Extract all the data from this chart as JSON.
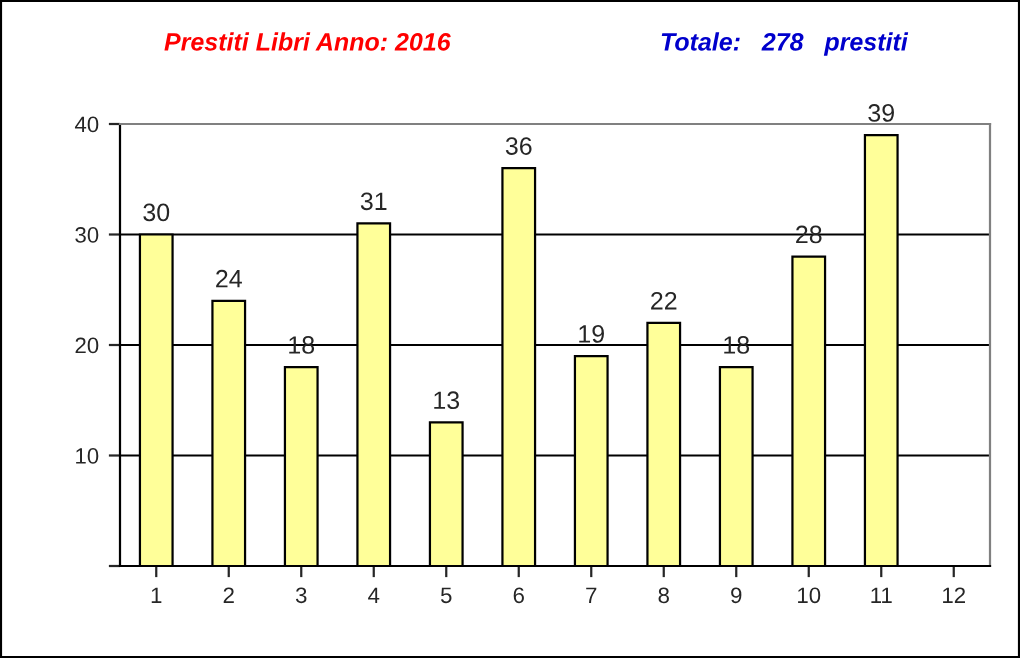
{
  "chart_data": {
    "type": "bar",
    "title": "Prestiti Libri Anno: 2016",
    "annotations": [
      "Totale:   278   prestiti"
    ],
    "categories": [
      "1",
      "2",
      "3",
      "4",
      "5",
      "6",
      "7",
      "8",
      "9",
      "10",
      "11",
      "12"
    ],
    "values": [
      30,
      24,
      18,
      31,
      13,
      36,
      19,
      22,
      18,
      28,
      39,
      null
    ],
    "color": "#ffff99",
    "ylim": [
      0,
      40
    ],
    "yticks": [
      {
        "value": 0,
        "label": null
      },
      10,
      20,
      30,
      40
    ],
    "grid": "y",
    "data_labels": true
  }
}
